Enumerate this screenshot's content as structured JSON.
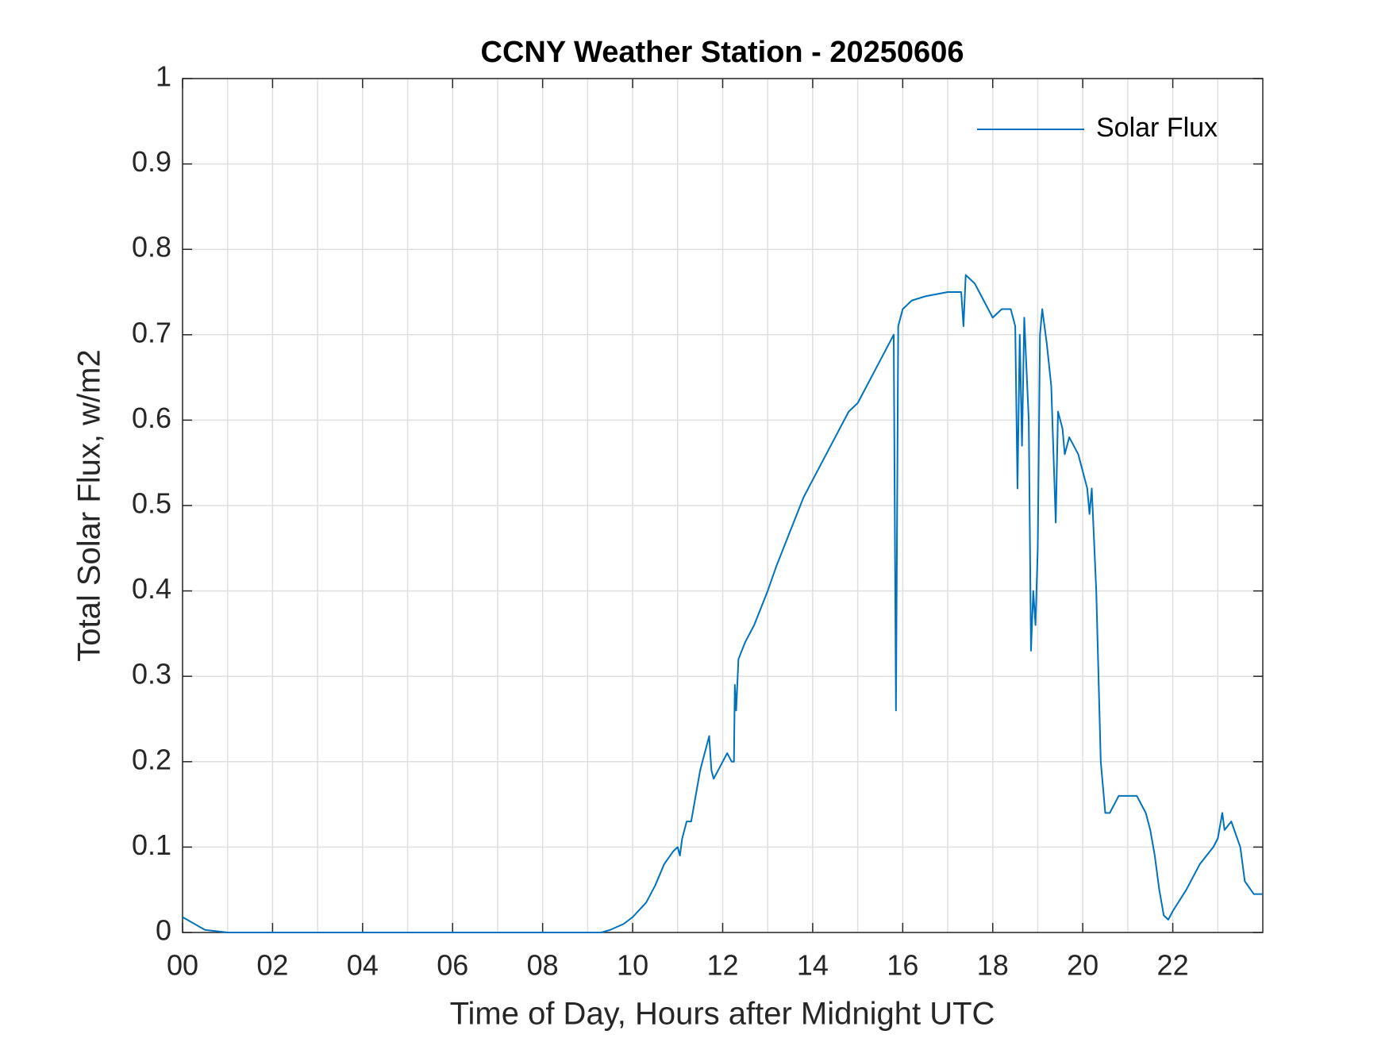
{
  "chart_data": {
    "type": "line",
    "title": "CCNY Weather Station - 20250606",
    "xlabel": "Time of Day, Hours after Midnight UTC",
    "ylabel": "Total Solar Flux, w/m2",
    "xlim": [
      0,
      24
    ],
    "xticks": [
      {
        "value": 0,
        "label": "00"
      },
      {
        "value": 2,
        "label": "02"
      },
      {
        "value": 4,
        "label": "04"
      },
      {
        "value": 6,
        "label": "06"
      },
      {
        "value": 8,
        "label": "08"
      },
      {
        "value": 10,
        "label": "10"
      },
      {
        "value": 12,
        "label": "12"
      },
      {
        "value": 14,
        "label": "14"
      },
      {
        "value": 16,
        "label": "16"
      },
      {
        "value": 18,
        "label": "18"
      },
      {
        "value": 20,
        "label": "20"
      },
      {
        "value": 22,
        "label": "22"
      }
    ],
    "xminorgrid": [
      1,
      3,
      5,
      7,
      9,
      11,
      13,
      15,
      17,
      19,
      21,
      23
    ],
    "ylim": [
      0,
      1
    ],
    "yticks": [
      0,
      0.1,
      0.2,
      0.3,
      0.4,
      0.5,
      0.6,
      0.7,
      0.8,
      0.9,
      1
    ],
    "grid": true,
    "legend": "northeast",
    "series": [
      {
        "name": "Solar Flux",
        "color": "#0072bd",
        "x": [
          0,
          0.5,
          1,
          9.3,
          9.5,
          9.8,
          10,
          10.3,
          10.5,
          10.7,
          10.9,
          11,
          11.05,
          11.1,
          11.2,
          11.3,
          11.4,
          11.5,
          11.6,
          11.7,
          11.75,
          11.8,
          11.9,
          12.0,
          12.1,
          12.2,
          12.25,
          12.27,
          12.3,
          12.35,
          12.5,
          12.7,
          13.0,
          13.2,
          13.5,
          13.8,
          14.0,
          14.2,
          14.5,
          14.8,
          15.0,
          15.2,
          15.4,
          15.6,
          15.8,
          15.85,
          15.9,
          16.0,
          16.2,
          16.5,
          17.0,
          17.3,
          17.35,
          17.4,
          17.6,
          17.8,
          18.0,
          18.2,
          18.4,
          18.5,
          18.55,
          18.6,
          18.65,
          18.7,
          18.8,
          18.85,
          18.9,
          18.95,
          19.0,
          19.05,
          19.1,
          19.2,
          19.3,
          19.4,
          19.45,
          19.55,
          19.6,
          19.7,
          19.9,
          20.0,
          20.1,
          20.15,
          20.2,
          20.3,
          20.4,
          20.45,
          20.5,
          20.6,
          20.8,
          21.0,
          21.2,
          21.4,
          21.5,
          21.6,
          21.7,
          21.8,
          21.9,
          22.0,
          22.3,
          22.6,
          22.9,
          23.0,
          23.1,
          23.15,
          23.3,
          23.5,
          23.6,
          23.8,
          24.0
        ],
        "values": [
          0.018,
          0.003,
          0,
          0,
          0.003,
          0.01,
          0.018,
          0.035,
          0.055,
          0.08,
          0.095,
          0.1,
          0.09,
          0.11,
          0.13,
          0.13,
          0.16,
          0.19,
          0.21,
          0.23,
          0.19,
          0.18,
          0.19,
          0.2,
          0.21,
          0.2,
          0.2,
          0.29,
          0.26,
          0.32,
          0.34,
          0.36,
          0.4,
          0.43,
          0.47,
          0.51,
          0.53,
          0.55,
          0.58,
          0.61,
          0.62,
          0.64,
          0.66,
          0.68,
          0.7,
          0.26,
          0.71,
          0.73,
          0.74,
          0.745,
          0.75,
          0.75,
          0.71,
          0.77,
          0.76,
          0.74,
          0.72,
          0.73,
          0.73,
          0.71,
          0.52,
          0.7,
          0.57,
          0.72,
          0.6,
          0.33,
          0.4,
          0.36,
          0.45,
          0.7,
          0.73,
          0.69,
          0.64,
          0.48,
          0.61,
          0.59,
          0.56,
          0.58,
          0.56,
          0.54,
          0.52,
          0.49,
          0.52,
          0.4,
          0.2,
          0.17,
          0.14,
          0.14,
          0.16,
          0.16,
          0.16,
          0.14,
          0.12,
          0.09,
          0.05,
          0.02,
          0.015,
          0.025,
          0.05,
          0.08,
          0.1,
          0.11,
          0.14,
          0.12,
          0.13,
          0.1,
          0.06,
          0.045,
          0.045
        ]
      }
    ]
  }
}
